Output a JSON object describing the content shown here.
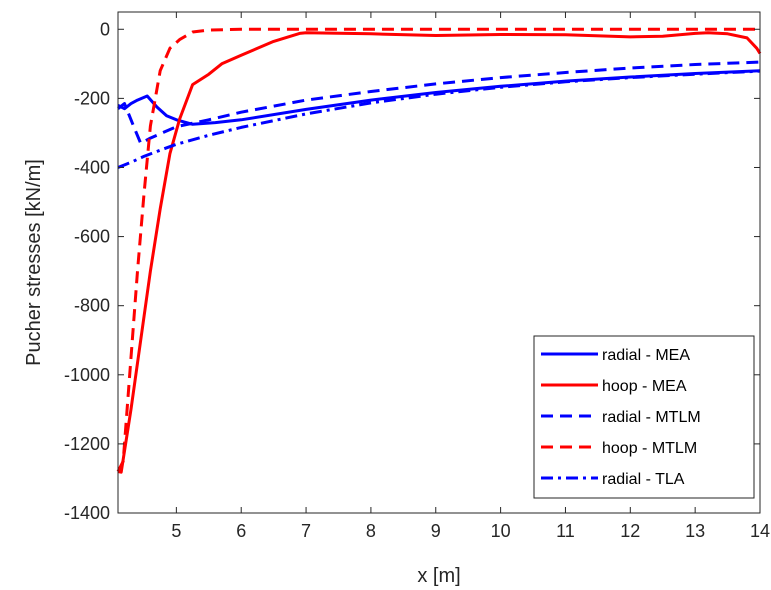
{
  "chart_data": {
    "type": "line",
    "title": "",
    "xlabel": "x [m]",
    "ylabel": "Pucher stresses [kN/m]",
    "xlim": [
      4.1,
      14
    ],
    "ylim": [
      -1400,
      50
    ],
    "x_ticks": [
      5,
      6,
      7,
      8,
      9,
      10,
      11,
      12,
      13,
      14
    ],
    "y_ticks": [
      0,
      -200,
      -400,
      -600,
      -800,
      -1000,
      -1200,
      -1400
    ],
    "grid": false,
    "legend_position": "bottom-right",
    "series": [
      {
        "name": "radial - MEA",
        "color": "#0000ff",
        "style": "solid",
        "x": [
          4.1,
          4.2,
          4.3,
          4.4,
          4.55,
          4.7,
          4.85,
          5.0,
          5.25,
          5.6,
          6.0,
          7.0,
          8.0,
          9.0,
          10.0,
          11.0,
          12.0,
          13.0,
          14.0
        ],
        "y": [
          -220,
          -230,
          -215,
          -205,
          -193,
          -225,
          -250,
          -262,
          -275,
          -270,
          -262,
          -232,
          -205,
          -183,
          -165,
          -150,
          -138,
          -128,
          -120
        ]
      },
      {
        "name": "hoop - MEA",
        "color": "#ff0000",
        "style": "solid",
        "x": [
          4.1,
          4.15,
          4.3,
          4.45,
          4.6,
          4.75,
          4.9,
          5.05,
          5.25,
          5.5,
          5.7,
          6.0,
          6.5,
          6.9,
          7.0,
          8.0,
          9.0,
          10.0,
          11.0,
          12.0,
          12.5,
          13.0,
          13.2,
          13.5,
          13.8,
          13.95,
          14.0
        ],
        "y": [
          -1280,
          -1282,
          -1100,
          -900,
          -700,
          -520,
          -360,
          -260,
          -160,
          -130,
          -100,
          -75,
          -35,
          -12,
          -10,
          -13,
          -18,
          -15,
          -16,
          -22,
          -20,
          -12,
          -10,
          -13,
          -25,
          -55,
          -70
        ]
      },
      {
        "name": "radial - MTLM",
        "color": "#0000ff",
        "style": "dashed",
        "x": [
          4.1,
          4.2,
          4.35,
          4.45,
          4.6,
          5.0,
          5.5,
          6.0,
          7.0,
          8.0,
          9.0,
          10.0,
          11.0,
          12.0,
          13.0,
          14.0
        ],
        "y": [
          -230,
          -215,
          -285,
          -330,
          -315,
          -282,
          -262,
          -240,
          -205,
          -180,
          -158,
          -140,
          -125,
          -112,
          -102,
          -95
        ]
      },
      {
        "name": "hoop - MTLM",
        "color": "#ff0000",
        "style": "dashed",
        "x": [
          4.1,
          4.18,
          4.3,
          4.4,
          4.5,
          4.6,
          4.75,
          4.9,
          5.05,
          5.25,
          5.5,
          6.0,
          7.0,
          8.0,
          9.0,
          10.0,
          11.0,
          12.0,
          13.0,
          14.0
        ],
        "y": [
          -1280,
          -1250,
          -950,
          -700,
          -480,
          -280,
          -120,
          -55,
          -30,
          -8,
          -2,
          0,
          0,
          0,
          0,
          0,
          0,
          0,
          0,
          0
        ]
      },
      {
        "name": "radial - TLA",
        "color": "#0000ff",
        "style": "dashdot",
        "x": [
          4.1,
          4.3,
          4.5,
          4.75,
          5.0,
          5.5,
          6.0,
          7.0,
          8.0,
          9.0,
          10.0,
          11.0,
          12.0,
          13.0,
          14.0
        ],
        "y": [
          -400,
          -385,
          -368,
          -350,
          -333,
          -307,
          -284,
          -245,
          -213,
          -188,
          -168,
          -152,
          -140,
          -130,
          -121
        ]
      }
    ]
  }
}
